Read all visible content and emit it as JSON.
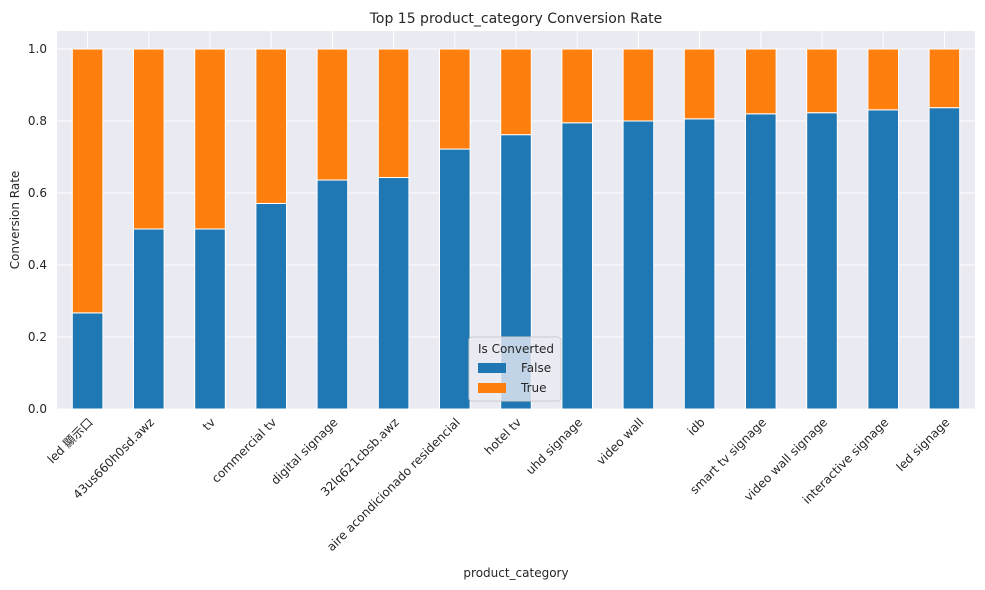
{
  "chart_data": {
    "type": "bar",
    "stacked": true,
    "title": "Top 15 product_category Conversion Rate",
    "xlabel": "product_category",
    "ylabel": "Conversion Rate",
    "ylim": [
      0,
      1.05
    ],
    "yticks": [
      "0.0",
      "0.2",
      "0.4",
      "0.6",
      "0.8",
      "1.0"
    ],
    "grid": true,
    "categories": [
      "led 顯示口",
      "43us660h0sd.awz",
      "tv",
      "commercial tv",
      "digital signage",
      "32lq621cbsb.awz",
      "aire acondicionado residencial",
      "hotel tv",
      "uhd signage",
      "video wall",
      "idb",
      "smart tv signage",
      "video wall signage",
      "interactive signage",
      "led signage"
    ],
    "series": [
      {
        "name": "False",
        "color": "#1f77b4",
        "values": [
          0.267,
          0.5,
          0.5,
          0.571,
          0.636,
          0.643,
          0.722,
          0.762,
          0.795,
          0.8,
          0.806,
          0.82,
          0.823,
          0.831,
          0.837
        ]
      },
      {
        "name": "True",
        "color": "#ff7f0e",
        "values": [
          0.733,
          0.5,
          0.5,
          0.429,
          0.364,
          0.357,
          0.278,
          0.238,
          0.205,
          0.2,
          0.194,
          0.18,
          0.177,
          0.169,
          0.163
        ]
      }
    ],
    "legend": {
      "title": "Is Converted",
      "placement": "bottom-center"
    }
  }
}
